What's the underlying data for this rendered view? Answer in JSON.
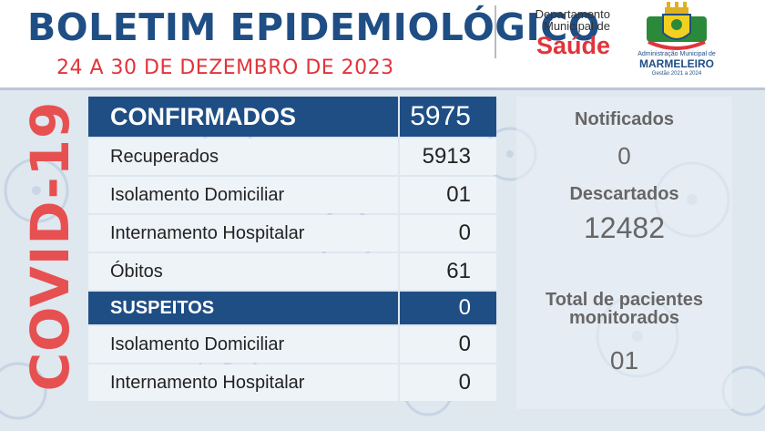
{
  "header": {
    "title": "BOLETIM EPIDEMIOLÓGICO",
    "date_range": "24 A 30 DE DEZEMBRO DE 2023",
    "dept_line1": "Departamento",
    "dept_line2": "Municipal de",
    "dept_saude": "Saúde",
    "logo_line1": "Administração Municipal de",
    "logo_line2": "MARMELEIRO",
    "logo_line3": "Gestão 2021 a 2024"
  },
  "side_label": "COVID-19",
  "confirmed": {
    "label": "CONFIRMADOS",
    "value": "5975",
    "rows": [
      {
        "label": "Recuperados",
        "value": "5913"
      },
      {
        "label": "Isolamento Domiciliar",
        "value": "01"
      },
      {
        "label": "Internamento Hospitalar",
        "value": "0"
      },
      {
        "label": "Óbitos",
        "value": "61"
      }
    ]
  },
  "suspects": {
    "label": "SUSPEITOS",
    "value": "0",
    "rows": [
      {
        "label": "Isolamento Domiciliar",
        "value": "0"
      },
      {
        "label": "Internamento Hospitalar",
        "value": "0"
      }
    ]
  },
  "stats": {
    "notificados_label": "Notificados",
    "notificados_value": "0",
    "descartados_label": "Descartados",
    "descartados_value": "12482",
    "monitorados_label_1": "Total de pacientes",
    "monitorados_label_2": "monitorados",
    "monitorados_value": "01"
  },
  "colors": {
    "primary_blue": "#1f4e85",
    "accent_red": "#e0353b",
    "background": "#dfe7ef"
  }
}
